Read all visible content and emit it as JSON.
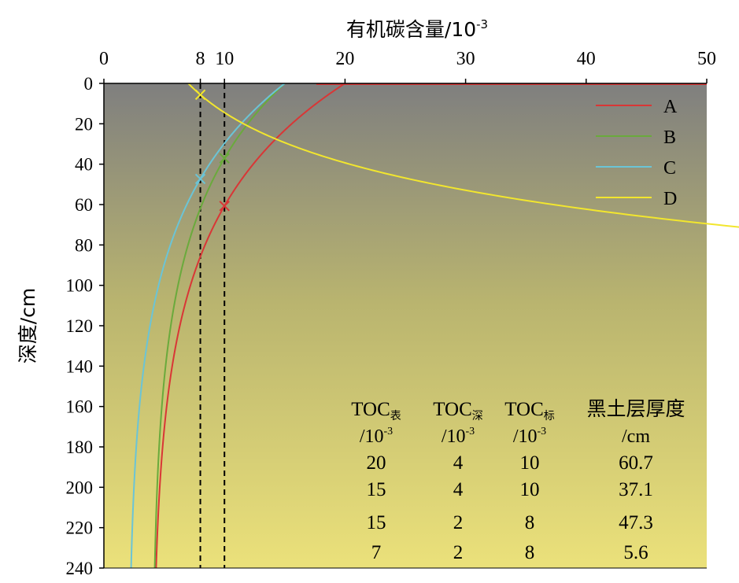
{
  "chart_data": {
    "type": "line",
    "xlabel": "有机碳含量/10",
    "xlabel_exp": "-3",
    "ylabel": "深度/cm",
    "xlim": [
      0,
      50
    ],
    "ylim": [
      0,
      240
    ],
    "x_ticks": [
      "0",
      "8",
      "10",
      "20",
      "30",
      "40",
      "50"
    ],
    "x_tick_values": [
      0,
      8,
      10,
      20,
      30,
      40,
      50
    ],
    "y_ticks": [
      "0",
      "20",
      "40",
      "60",
      "80",
      "100",
      "120",
      "140",
      "160",
      "180",
      "200",
      "220",
      "240"
    ],
    "y_tick_values": [
      0,
      20,
      40,
      60,
      80,
      100,
      120,
      140,
      160,
      180,
      200,
      220,
      240
    ],
    "y_reversed": true,
    "x_axis_position": "top",
    "background_gradient": [
      "#7f7f7f",
      "#b9b46f",
      "#ebe17a"
    ],
    "reference_lines": [
      {
        "x": 8,
        "style": "dashed",
        "color": "#000000"
      },
      {
        "x": 10,
        "style": "dashed",
        "color": "#000000"
      }
    ],
    "legend_position": "top-right",
    "series": [
      {
        "name": "A",
        "color": "#d93636",
        "toc_surface": 20,
        "toc_deep": 4,
        "toc_standard": 10,
        "thickness": 60.7
      },
      {
        "name": "B",
        "color": "#6aaa3c",
        "toc_surface": 15,
        "toc_deep": 4,
        "toc_standard": 10,
        "thickness": 37.1
      },
      {
        "name": "C",
        "color": "#6bc4d6",
        "toc_surface": 15,
        "toc_deep": 2,
        "toc_standard": 8,
        "thickness": 47.3
      },
      {
        "name": "D",
        "color": "#f2e62e",
        "toc_surface": 7,
        "toc_deep": 2,
        "toc_standard": 8,
        "thickness": 5.6
      }
    ],
    "surface_spike": {
      "x": [
        0,
        50
      ],
      "color": "#d93636"
    },
    "table": {
      "headers": [
        {
          "main": "TOC",
          "sub": "表",
          "unit": "/10",
          "unit_exp": "-3"
        },
        {
          "main": "TOC",
          "sub": "深",
          "unit": "/10",
          "unit_exp": "-3"
        },
        {
          "main": "TOC",
          "sub": "标",
          "unit": "/10",
          "unit_exp": "-3"
        },
        {
          "main": "黑土层厚度",
          "sub": "",
          "unit": "/cm",
          "unit_exp": ""
        }
      ],
      "rows": [
        [
          "20",
          "4",
          "10",
          "60.7"
        ],
        [
          "15",
          "4",
          "10",
          "37.1"
        ],
        [
          "15",
          "2",
          "8",
          "47.3"
        ],
        [
          "7",
          "2",
          "8",
          "5.6"
        ]
      ]
    }
  }
}
